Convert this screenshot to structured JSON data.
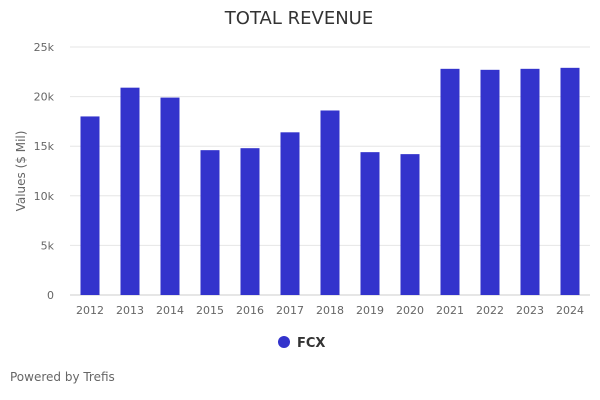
{
  "chart_data": {
    "type": "bar",
    "title": "TOTAL REVENUE",
    "xlabel": "",
    "ylabel": "Values ($ Mil)",
    "categories": [
      "2012",
      "2013",
      "2014",
      "2015",
      "2016",
      "2017",
      "2018",
      "2019",
      "2020",
      "2021",
      "2022",
      "2023",
      "2024"
    ],
    "series": [
      {
        "name": "FCX",
        "values": [
          18000,
          20900,
          19900,
          14600,
          14800,
          16400,
          18600,
          14400,
          14200,
          22800,
          22700,
          22800,
          22900
        ]
      }
    ],
    "ylim": [
      0,
      25000
    ],
    "yticks": [
      0,
      5000,
      10000,
      15000,
      20000,
      25000
    ],
    "ytick_labels": [
      "0",
      "5k",
      "10k",
      "15k",
      "20k",
      "25k"
    ],
    "grid": true,
    "legend": "bottom-center"
  },
  "colors": {
    "bar": "#3333cc",
    "grid": "#e6e6e6",
    "axis": "#cccccc",
    "tick_text": "#666666",
    "title_text": "#333333"
  },
  "footer": {
    "text": "Powered by Trefis"
  }
}
